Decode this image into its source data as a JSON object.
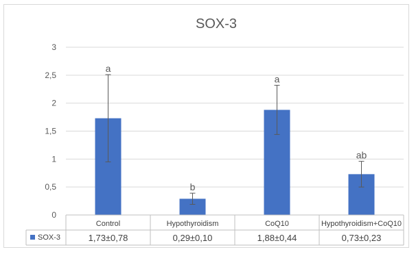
{
  "chart_data": {
    "type": "bar",
    "title": "SOX-3",
    "categories": [
      "Control",
      "Hypothyroidism",
      "CoQ10",
      "Hypothyroidism+CoQ10"
    ],
    "series": [
      {
        "name": "SOX-3",
        "values": [
          1.73,
          0.29,
          1.88,
          0.73
        ],
        "errors": [
          0.78,
          0.1,
          0.44,
          0.23
        ],
        "color": "#4472c4"
      }
    ],
    "significance_labels": [
      "a",
      "b",
      "a",
      "ab"
    ],
    "ylim": [
      0,
      3
    ],
    "yticks": [
      0,
      0.5,
      1,
      1.5,
      2,
      2.5,
      3
    ],
    "ytick_labels": [
      "0",
      "0,5",
      "1",
      "1,5",
      "2",
      "2,5",
      "3"
    ],
    "data_table": {
      "legend_label": "SOX-3",
      "cells": [
        "1,73±0,78",
        "0,29±0,10",
        "1,88±0,44",
        "0,73±0,23"
      ]
    },
    "grid": true,
    "gridline_color": "#d9d9d9",
    "error_bar_color": "#595959"
  }
}
